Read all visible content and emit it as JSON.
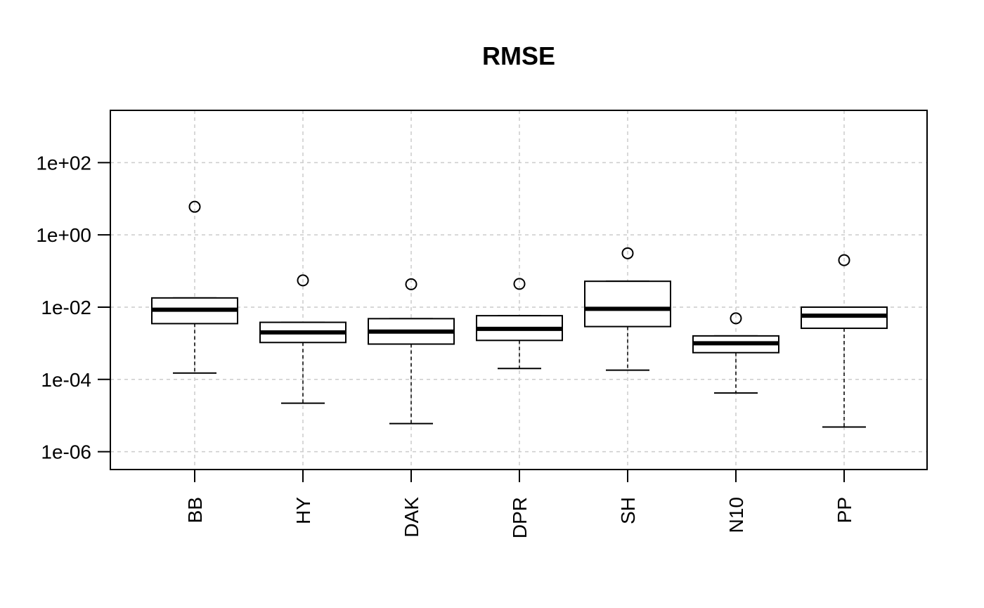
{
  "chart_data": {
    "type": "boxplot",
    "title": "RMSE",
    "xlabel": "",
    "ylabel": "",
    "y_scale": "log10",
    "ylim": [
      4e-07,
      2000
    ],
    "y_ticks": [
      1e-06,
      0.0001,
      0.01,
      1.0,
      100.0
    ],
    "y_tick_labels": [
      "1e-06",
      "1e-04",
      "1e-02",
      "1e+00",
      "1e+02"
    ],
    "grid": true,
    "x_tick_label_orientation": "vertical",
    "categories": [
      "BB",
      "HY",
      "DAK",
      "DPR",
      "SH",
      "N10",
      "PP"
    ],
    "boxes": [
      {
        "category": "BB",
        "lower_whisker": 0.00015,
        "q1": 0.0035,
        "median": 0.0085,
        "q3": 0.018,
        "upper_whisker": 0.018,
        "outliers": [
          6.0
        ]
      },
      {
        "category": "HY",
        "lower_whisker": 2.2e-05,
        "q1": 0.00105,
        "median": 0.002,
        "q3": 0.0038,
        "upper_whisker": 0.0038,
        "outliers": [
          0.055
        ]
      },
      {
        "category": "DAK",
        "lower_whisker": 6e-06,
        "q1": 0.00095,
        "median": 0.0021,
        "q3": 0.0048,
        "upper_whisker": 0.0048,
        "outliers": [
          0.043
        ]
      },
      {
        "category": "DPR",
        "lower_whisker": 0.0002,
        "q1": 0.0012,
        "median": 0.0025,
        "q3": 0.0058,
        "upper_whisker": 0.0058,
        "outliers": [
          0.044
        ]
      },
      {
        "category": "SH",
        "lower_whisker": 0.00018,
        "q1": 0.0029,
        "median": 0.009,
        "q3": 0.052,
        "upper_whisker": 0.052,
        "outliers": [
          0.31
        ]
      },
      {
        "category": "N10",
        "lower_whisker": 4.2e-05,
        "q1": 0.00055,
        "median": 0.001,
        "q3": 0.0016,
        "upper_whisker": 0.0016,
        "outliers": [
          0.0049
        ]
      },
      {
        "category": "PP",
        "lower_whisker": 4.8e-06,
        "q1": 0.0026,
        "median": 0.0058,
        "q3": 0.01,
        "upper_whisker": 0.01,
        "outliers": [
          0.2
        ]
      }
    ]
  }
}
